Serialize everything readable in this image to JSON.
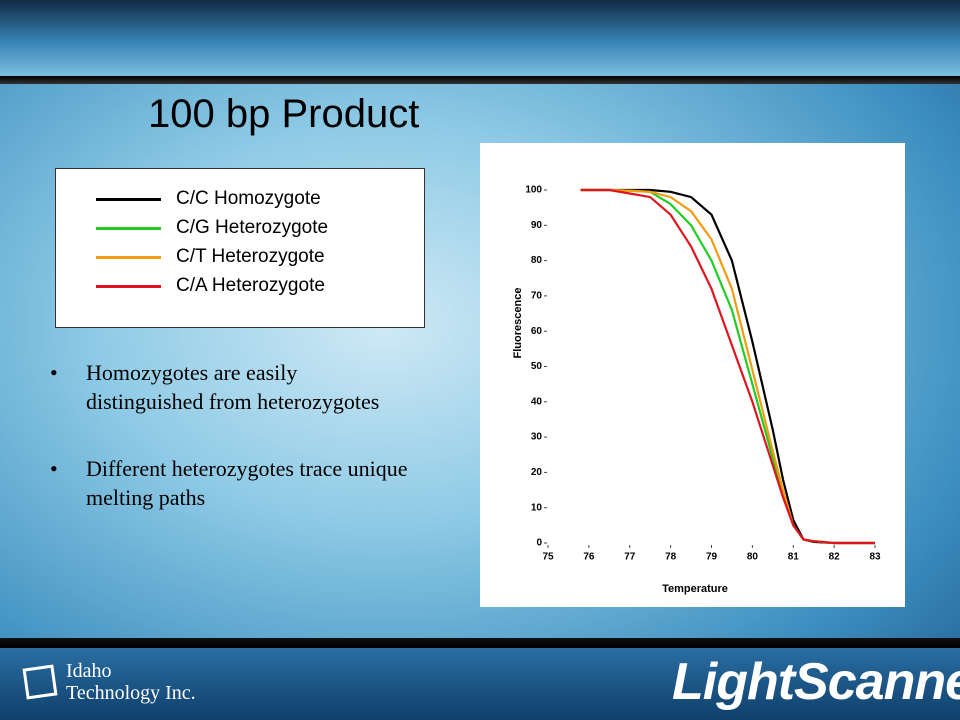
{
  "title": "100 bp Product",
  "bullets": [
    "Homozygotes are easily distinguished from heterozygotes",
    "Different heterozygotes trace unique melting paths"
  ],
  "footer": {
    "company_line1": "Idaho",
    "company_line2": "Technology Inc.",
    "product": "LightScanner",
    "mark": "®"
  },
  "chart_data": {
    "type": "line",
    "xlabel": "Temperature",
    "ylabel": "Fluorescence",
    "x": [
      75.8,
      76.5,
      77,
      77.5,
      78,
      78.5,
      79,
      79.5,
      80,
      80.5,
      80.75,
      81,
      81.25,
      81.5,
      82,
      82.5,
      83
    ],
    "series": [
      {
        "name": "C/C Homozygote",
        "color": "#000000",
        "values": [
          100,
          100,
          100,
          100,
          99.5,
          98,
          93,
          80,
          57,
          32,
          18,
          6.5,
          1,
          0.3,
          0,
          0,
          0
        ]
      },
      {
        "name": "C/G Heterozygote",
        "color": "#22cc22",
        "values": [
          100,
          100,
          99.8,
          99.5,
          96,
          90,
          80,
          66,
          45,
          24,
          14,
          5,
          1,
          0.5,
          0,
          0,
          0
        ]
      },
      {
        "name": "C/T Heterozygote",
        "color": "#f39c12",
        "values": [
          100,
          100,
          99.8,
          99.5,
          98,
          94,
          86,
          72,
          49,
          26,
          15,
          5,
          1,
          0.5,
          0,
          0,
          0
        ]
      },
      {
        "name": "C/A Heterozygote",
        "color": "#e0141e",
        "values": [
          100,
          100,
          99,
          98,
          93,
          84,
          72,
          56,
          40,
          22,
          13,
          5,
          1,
          0.5,
          0,
          0,
          0
        ]
      }
    ],
    "xlim": [
      75,
      83
    ],
    "xticks": [
      75,
      76,
      77,
      78,
      79,
      80,
      81,
      82,
      83
    ],
    "ylim": [
      0,
      100
    ],
    "yticks": [
      0,
      10,
      20,
      30,
      40,
      50,
      60,
      70,
      80,
      90,
      100
    ]
  }
}
